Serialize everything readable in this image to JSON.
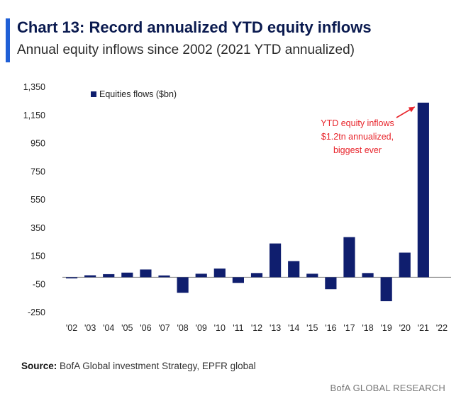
{
  "header": {
    "title": "Chart 13: Record annualized YTD equity inflows",
    "subtitle": "Annual equity inflows since 2002 (2021 YTD annualized)"
  },
  "chart_data": {
    "type": "bar",
    "categories": [
      "'02",
      "'03",
      "'04",
      "'05",
      "'06",
      "'07",
      "'08",
      "'09",
      "'10",
      "'11",
      "'12",
      "'13",
      "'14",
      "'15",
      "'16",
      "'17",
      "'18",
      "'19",
      "'20",
      "'21",
      "'22"
    ],
    "series": [
      {
        "name": "Equities flows ($bn)",
        "values": [
          -5,
          14,
          22,
          33,
          55,
          13,
          -110,
          25,
          62,
          -40,
          30,
          240,
          115,
          25,
          -85,
          285,
          30,
          -170,
          175,
          1240,
          null
        ]
      }
    ],
    "yticks": [
      1350,
      1150,
      950,
      750,
      550,
      350,
      150,
      -50,
      -250
    ],
    "ytick_labels": [
      "1,350",
      "1,150",
      "950",
      "750",
      "550",
      "350",
      "150",
      "-50",
      "-250"
    ],
    "ylim": [
      -250,
      1350
    ],
    "legend": {
      "label": "Equities flows ($bn)",
      "position": "top-left"
    },
    "annotation": {
      "lines": [
        "YTD equity inflows",
        "$1.2tn annualized,",
        "biggest ever"
      ],
      "color": "#e8232a",
      "points_to": "'21"
    },
    "grid": false,
    "bar_color": "#0f1e6e"
  },
  "source": {
    "label": "Source:",
    "text": "BofA Global investment Strategy, EPFR global"
  },
  "footer": {
    "brand": "BofA GLOBAL RESEARCH"
  },
  "colors": {
    "accent": "#1f5fd6",
    "title": "#0a1a4f"
  }
}
